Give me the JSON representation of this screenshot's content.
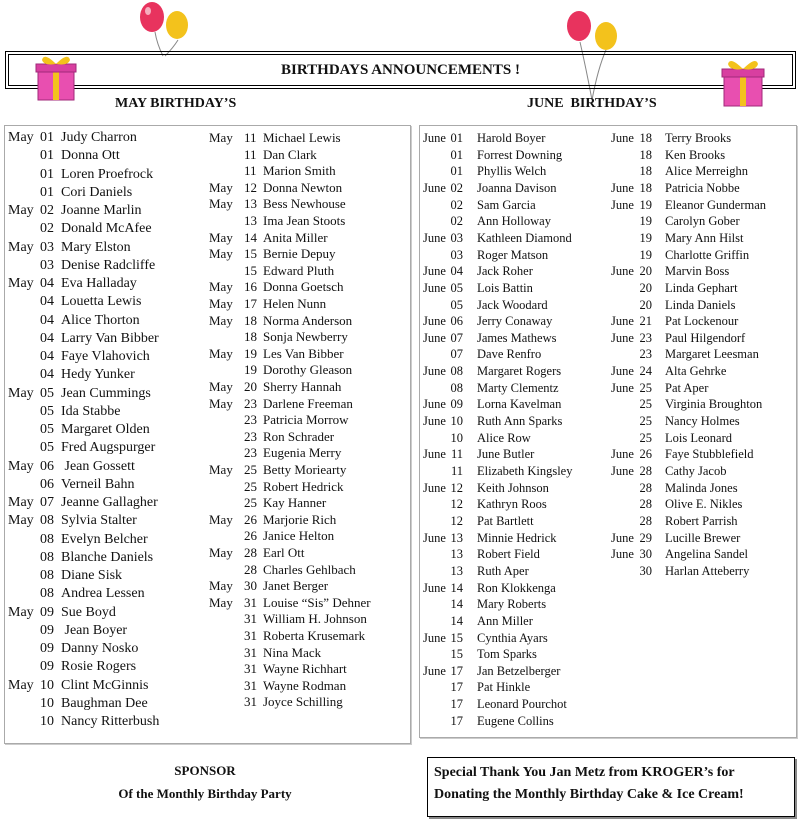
{
  "title": "BIRTHDAYS ANNOUNCEMENTS !",
  "may_header": "MAY BIRTHDAY’S",
  "june_header": "JUNE  BIRTHDAY’S",
  "may_col1": [
    [
      "May",
      "01",
      "Judy Charron"
    ],
    [
      "",
      "01",
      "Donna Ott"
    ],
    [
      "",
      "01",
      "Loren Proefrock"
    ],
    [
      "",
      "01",
      "Cori Daniels"
    ],
    [
      "May",
      "02",
      "Joanne Marlin"
    ],
    [
      "",
      "02",
      "Donald McAfee"
    ],
    [
      "May",
      "03",
      "Mary Elston"
    ],
    [
      "",
      "03",
      "Denise Radcliffe"
    ],
    [
      "May",
      "04",
      "Eva Halladay"
    ],
    [
      "",
      "04",
      "Louetta Lewis"
    ],
    [
      "",
      "04",
      "Alice Thorton"
    ],
    [
      "",
      "04",
      "Larry Van Bibber"
    ],
    [
      "",
      "04",
      "Faye Vlahovich"
    ],
    [
      "",
      "04",
      "Hedy Yunker"
    ],
    [
      "May",
      "05",
      "Jean Cummings"
    ],
    [
      "",
      "05",
      "Ida Stabbe"
    ],
    [
      "",
      "05",
      "Margaret Olden"
    ],
    [
      "",
      "05",
      "Fred Augspurger"
    ],
    [
      "May",
      "06",
      " Jean Gossett"
    ],
    [
      "",
      "06",
      "Verneil Bahn"
    ],
    [
      "May",
      "07",
      "Jeanne Gallagher"
    ],
    [
      "May",
      "08",
      "Sylvia Stalter"
    ],
    [
      "",
      "08",
      "Evelyn Belcher"
    ],
    [
      "",
      "08",
      "Blanche Daniels"
    ],
    [
      "",
      "08",
      "Diane Sisk"
    ],
    [
      "",
      "08",
      "Andrea Lessen"
    ],
    [
      "May",
      "09",
      "Sue Boyd"
    ],
    [
      "",
      "09",
      " Jean Boyer"
    ],
    [
      "",
      "09",
      "Danny Nosko"
    ],
    [
      "",
      "09",
      "Rosie Rogers"
    ],
    [
      "May",
      "10",
      "Clint McGinnis"
    ],
    [
      "",
      "10",
      "Baughman Dee"
    ],
    [
      "",
      "10",
      "Nancy Ritterbush"
    ]
  ],
  "may_col2": [
    [
      "May",
      "11",
      "Michael Lewis"
    ],
    [
      "",
      "11",
      "Dan Clark"
    ],
    [
      "",
      "11",
      "Marion Smith"
    ],
    [
      "May",
      "12",
      "Donna Newton"
    ],
    [
      "May",
      "13",
      "Bess Newhouse"
    ],
    [
      "",
      "13",
      "Ima Jean Stoots"
    ],
    [
      "May",
      "14",
      "Anita Miller"
    ],
    [
      "May",
      "15",
      "Bernie Depuy"
    ],
    [
      "",
      "15",
      "Edward Pluth"
    ],
    [
      "May",
      "16",
      "Donna Goetsch"
    ],
    [
      "May",
      "17",
      "Helen Nunn"
    ],
    [
      "May",
      "18",
      "Norma Anderson"
    ],
    [
      "",
      "18",
      "Sonja Newberry"
    ],
    [
      "May",
      "19",
      "Les Van Bibber"
    ],
    [
      "",
      "19",
      "Dorothy Gleason"
    ],
    [
      "May",
      "20",
      "Sherry Hannah"
    ],
    [
      "May",
      "23",
      "Darlene Freeman"
    ],
    [
      "",
      "23",
      "Patricia Morrow"
    ],
    [
      "",
      "23",
      "Ron Schrader"
    ],
    [
      "",
      "23",
      "Eugenia Merry"
    ],
    [
      "May",
      "25",
      "Betty Moriearty"
    ],
    [
      "",
      "25",
      "Robert Hedrick"
    ],
    [
      "",
      "25",
      "Kay Hanner"
    ],
    [
      "May",
      "26",
      "Marjorie Rich"
    ],
    [
      "",
      "26",
      "Janice Helton"
    ],
    [
      "May",
      "28",
      "Earl Ott"
    ],
    [
      "",
      "28",
      "Charles Gehlbach"
    ],
    [
      "May",
      "30",
      "Janet Berger"
    ],
    [
      "May",
      "31",
      "Louise “Sis” Dehner"
    ],
    [
      "",
      "31",
      "William H. Johnson"
    ],
    [
      "",
      "31",
      "Roberta Krusemark"
    ],
    [
      "",
      "31",
      "Nina Mack"
    ],
    [
      "",
      "31",
      "Wayne Richhart"
    ],
    [
      "",
      "31",
      "Wayne Rodman"
    ],
    [
      "",
      "31",
      "Joyce Schilling"
    ]
  ],
  "june_col1": [
    [
      "June",
      "01",
      "Harold Boyer"
    ],
    [
      "",
      "01",
      "Forrest Downing"
    ],
    [
      "",
      "01",
      "Phyllis Welch"
    ],
    [
      "June",
      "02",
      "Joanna Davison"
    ],
    [
      "",
      "02",
      "Sam Garcia"
    ],
    [
      "",
      "02",
      "Ann Holloway"
    ],
    [
      "June",
      "03",
      "Kathleen Diamond"
    ],
    [
      "",
      "03",
      "Roger Matson"
    ],
    [
      "June",
      "04",
      "Jack Roher"
    ],
    [
      "June",
      "05",
      "Lois Battin"
    ],
    [
      "",
      "05",
      "Jack Woodard"
    ],
    [
      "June",
      "06",
      "Jerry Conaway"
    ],
    [
      "June",
      "07",
      "James Mathews"
    ],
    [
      "",
      "07",
      "Dave Renfro"
    ],
    [
      "June",
      "08",
      "Margaret Rogers"
    ],
    [
      "",
      "08",
      "Marty Clementz"
    ],
    [
      "June",
      "09",
      "Lorna Kavelman"
    ],
    [
      "June",
      "10",
      "Ruth Ann Sparks"
    ],
    [
      "",
      "10",
      "Alice Row"
    ],
    [
      "June",
      "11",
      "June Butler"
    ],
    [
      "",
      "11",
      "Elizabeth Kingsley"
    ],
    [
      "June",
      "12",
      "Keith Johnson"
    ],
    [
      "",
      "12",
      "Kathryn Roos"
    ],
    [
      "",
      "12",
      "Pat Bartlett"
    ],
    [
      "June",
      "13",
      "Minnie Hedrick"
    ],
    [
      "",
      "13",
      "Robert Field"
    ],
    [
      "",
      "13",
      "Ruth Aper"
    ],
    [
      "June",
      "14",
      "Ron Klokkenga"
    ],
    [
      "",
      "14",
      "Mary Roberts"
    ],
    [
      "",
      "14",
      "Ann Miller"
    ],
    [
      "June",
      "15",
      "Cynthia Ayars"
    ],
    [
      "",
      "15",
      "Tom Sparks"
    ],
    [
      "June",
      "17",
      "Jan Betzelberger"
    ],
    [
      "",
      "17",
      "Pat Hinkle"
    ],
    [
      "",
      "17",
      "Leonard Pourchot"
    ],
    [
      "",
      "17",
      "Eugene Collins"
    ]
  ],
  "june_col2": [
    [
      "June",
      "18",
      "Terry Brooks"
    ],
    [
      "",
      "18",
      "Ken Brooks"
    ],
    [
      "",
      "18",
      "Alice Merreighn"
    ],
    [
      "June",
      "18",
      "Patricia Nobbe"
    ],
    [
      "June",
      "19",
      "Eleanor Gunderman"
    ],
    [
      "",
      "19",
      "Carolyn Gober"
    ],
    [
      "",
      "19",
      "Mary Ann Hilst"
    ],
    [
      "",
      "19",
      "Charlotte Griffin"
    ],
    [
      "June",
      "20",
      "Marvin Boss"
    ],
    [
      "",
      "20",
      "Linda Gephart"
    ],
    [
      "",
      "20",
      "Linda Daniels"
    ],
    [
      "June",
      "21",
      "Pat Lockenour"
    ],
    [
      "June",
      "23",
      "Paul Hilgendorf"
    ],
    [
      "",
      "23",
      "Margaret Leesman"
    ],
    [
      "June",
      "24",
      "Alta Gehrke"
    ],
    [
      "June",
      "25",
      "Pat Aper"
    ],
    [
      "",
      "25",
      "Virginia Broughton"
    ],
    [
      "",
      "25",
      "Nancy Holmes"
    ],
    [
      "",
      "25",
      "Lois Leonard"
    ],
    [
      "June",
      "26",
      "Faye Stubblefield"
    ],
    [
      "June",
      "28",
      "Cathy Jacob"
    ],
    [
      "",
      "28",
      "Malinda Jones"
    ],
    [
      "",
      "28",
      "Olive E. Nikles"
    ],
    [
      "",
      "28",
      "Robert Parrish"
    ],
    [
      "June",
      "29",
      "Lucille Brewer"
    ],
    [
      "June",
      "30",
      "Angelina Sandel"
    ],
    [
      "",
      "30",
      "Harlan Atteberry"
    ]
  ],
  "sponsor": {
    "line1": "SPONSOR",
    "line2": "Of the Monthly Birthday Party"
  },
  "thanks": {
    "line1": "Special Thank You Jan Metz from KROGER’s for",
    "line2": "Donating the Monthly Birthday Cake & Ice Cream!"
  },
  "colors": {
    "balloon_red": "#e8335e",
    "balloon_yellow": "#f3c21c",
    "gift_pink": "#e84fb0",
    "ribbon": "#f3c21c"
  }
}
